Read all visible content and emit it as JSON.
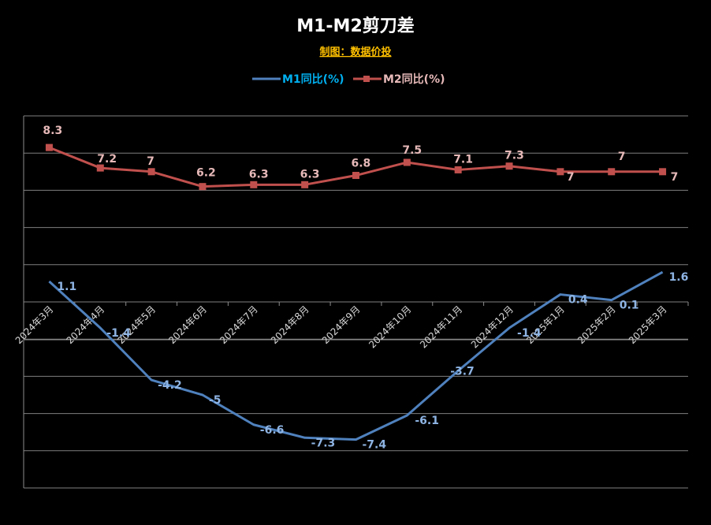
{
  "chart_data": {
    "type": "line",
    "title": "M1-M2剪刀差",
    "subtitle": "制图：数据价投",
    "categories": [
      "2024年3月",
      "2024年4月",
      "2024年5月",
      "2024年6月",
      "2024年7月",
      "2024年8月",
      "2024年9月",
      "2024年10月",
      "2024年11月",
      "2024年12月",
      "2025年1月",
      "2025年2月",
      "2025年3月"
    ],
    "series": [
      {
        "name": "M1同比(%)",
        "color": "#4f81bd",
        "label_color": "#8eb4e3",
        "values": [
          1.1,
          -1.4,
          -4.2,
          -5,
          -6.6,
          -7.3,
          -7.4,
          -6.1,
          -3.7,
          -1.4,
          0.4,
          0.1,
          1.6
        ]
      },
      {
        "name": "M2同比(%)",
        "color": "#c0504d",
        "label_color": "#e6b9b8",
        "values": [
          8.3,
          7.2,
          7,
          6.2,
          6.3,
          6.3,
          6.8,
          7.5,
          7.1,
          7.3,
          7,
          7,
          7
        ]
      }
    ],
    "ylim": [
      -10,
      10
    ],
    "grid": true,
    "legend": "top-center"
  }
}
